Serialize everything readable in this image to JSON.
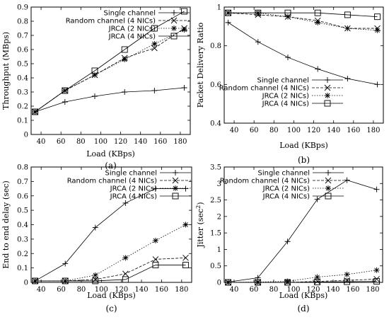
{
  "chart_data": [
    {
      "type": "line",
      "panel_label": "(a)",
      "xlabel": "Load (KBps)",
      "ylabel": "Throughput (MBps)",
      "xlim": [
        30,
        190
      ],
      "ylim": [
        0,
        0.9
      ],
      "x_ticks": [
        40,
        60,
        80,
        100,
        120,
        140,
        160,
        180
      ],
      "y_ticks": [
        0,
        0.1,
        0.2,
        0.3,
        0.4,
        0.5,
        0.6,
        0.7,
        0.8,
        0.9
      ],
      "y_tick_labels": [
        "0",
        "0.1",
        "0.2",
        "0.3",
        "0.4",
        "0.5",
        "0.6",
        "0.7",
        "0.8",
        "0.9"
      ],
      "grid": false,
      "legend_position": "top-left",
      "x": [
        34,
        64,
        94,
        124,
        154,
        184
      ],
      "series": [
        {
          "name": "Single channel",
          "marker": "plus",
          "dash": "solid",
          "values": [
            0.16,
            0.23,
            0.27,
            0.3,
            0.31,
            0.33
          ]
        },
        {
          "name": "Random channel (4 NICs)",
          "marker": "cross",
          "dash": "dashed",
          "values": [
            0.16,
            0.31,
            0.42,
            0.54,
            0.61,
            0.75
          ]
        },
        {
          "name": "JRCA (2 NICs)",
          "marker": "star",
          "dash": "dotted",
          "values": [
            0.16,
            0.31,
            0.42,
            0.53,
            0.64,
            0.74
          ]
        },
        {
          "name": "JRCA (4 NICs)",
          "marker": "square",
          "dash": "solid",
          "values": [
            0.16,
            0.31,
            0.45,
            0.6,
            0.75,
            0.87
          ]
        }
      ]
    },
    {
      "type": "line",
      "panel_label": "(b)",
      "xlabel": "Load (KBps)",
      "ylabel": "Packet Delivery Ratio",
      "xlim": [
        30,
        190
      ],
      "ylim": [
        0.4,
        1.0
      ],
      "x_ticks": [
        40,
        60,
        80,
        100,
        120,
        140,
        160,
        180
      ],
      "y_ticks": [
        0.4,
        0.6,
        0.8,
        1.0
      ],
      "y_tick_labels": [
        "0.4",
        "0.6",
        "0.8",
        "1"
      ],
      "grid": false,
      "legend_position": "bottom-left",
      "x": [
        34,
        64,
        94,
        124,
        154,
        184
      ],
      "series": [
        {
          "name": "Single channel",
          "marker": "plus",
          "dash": "solid",
          "values": [
            0.92,
            0.82,
            0.74,
            0.68,
            0.63,
            0.6
          ]
        },
        {
          "name": "Random channel (4 NICs)",
          "marker": "cross",
          "dash": "dashed",
          "values": [
            0.97,
            0.96,
            0.95,
            0.93,
            0.89,
            0.89
          ]
        },
        {
          "name": "JRCA (2 NICs)",
          "marker": "star",
          "dash": "dotted",
          "values": [
            0.97,
            0.97,
            0.95,
            0.92,
            0.89,
            0.88
          ]
        },
        {
          "name": "JRCA (4 NICs)",
          "marker": "square",
          "dash": "solid",
          "values": [
            0.97,
            0.97,
            0.97,
            0.97,
            0.96,
            0.95
          ]
        }
      ]
    },
    {
      "type": "line",
      "panel_label": "(c)",
      "xlabel": "Load (KBps)",
      "ylabel": "End to end delay (sec)",
      "xlim": [
        30,
        190
      ],
      "ylim": [
        0,
        0.8
      ],
      "x_ticks": [
        40,
        60,
        80,
        100,
        120,
        140,
        160,
        180
      ],
      "y_ticks": [
        0,
        0.1,
        0.2,
        0.3,
        0.4,
        0.5,
        0.6,
        0.7,
        0.8
      ],
      "y_tick_labels": [
        "0",
        "0.1",
        "0.2",
        "0.3",
        "0.4",
        "0.5",
        "0.6",
        "0.7",
        "0.8"
      ],
      "grid": false,
      "legend_position": "top-left",
      "x": [
        34,
        64,
        94,
        124,
        154,
        184
      ],
      "series": [
        {
          "name": "Single channel",
          "marker": "plus",
          "dash": "solid",
          "values": [
            0.01,
            0.13,
            0.38,
            0.55,
            0.65,
            0.65
          ]
        },
        {
          "name": "Random channel (4 NICs)",
          "marker": "cross",
          "dash": "dashed",
          "values": [
            0.01,
            0.01,
            0.02,
            0.06,
            0.16,
            0.17
          ]
        },
        {
          "name": "JRCA (2 NICs)",
          "marker": "star",
          "dash": "dotted",
          "values": [
            0.01,
            0.01,
            0.05,
            0.17,
            0.29,
            0.4
          ]
        },
        {
          "name": "JRCA (4 NICs)",
          "marker": "square",
          "dash": "solid",
          "values": [
            0.01,
            0.01,
            0.01,
            0.02,
            0.12,
            0.12
          ]
        }
      ]
    },
    {
      "type": "line",
      "panel_label": "(d)",
      "xlabel": "Load (KBps)",
      "ylabel": "Jitter (sec",
      "ylabel_sup": "2",
      "ylabel_end": ")",
      "xlim": [
        30,
        190
      ],
      "ylim": [
        0,
        3.5
      ],
      "x_ticks": [
        40,
        60,
        80,
        100,
        120,
        140,
        160,
        180
      ],
      "y_ticks": [
        0,
        0.5,
        1.0,
        1.5,
        2.0,
        2.5,
        3.0,
        3.5
      ],
      "y_tick_labels": [
        "0",
        "0.5",
        "1",
        "1.5",
        "2",
        "2.5",
        "3",
        "3.5"
      ],
      "grid": false,
      "legend_position": "top-left",
      "x": [
        34,
        64,
        94,
        124,
        154,
        184
      ],
      "series": [
        {
          "name": "Single channel",
          "marker": "plus",
          "dash": "solid",
          "values": [
            0.01,
            0.14,
            1.24,
            2.52,
            3.1,
            2.82
          ]
        },
        {
          "name": "Random channel (4 NICs)",
          "marker": "cross",
          "dash": "dashed",
          "values": [
            0.0,
            0.0,
            0.0,
            0.03,
            0.06,
            0.1
          ]
        },
        {
          "name": "JRCA (2 NICs)",
          "marker": "star",
          "dash": "dotted",
          "values": [
            0.0,
            0.01,
            0.03,
            0.16,
            0.24,
            0.37
          ]
        },
        {
          "name": "JRCA (4 NICs)",
          "marker": "square",
          "dash": "solid",
          "values": [
            0.0,
            0.0,
            0.0,
            0.01,
            0.02,
            0.03
          ]
        }
      ]
    }
  ]
}
